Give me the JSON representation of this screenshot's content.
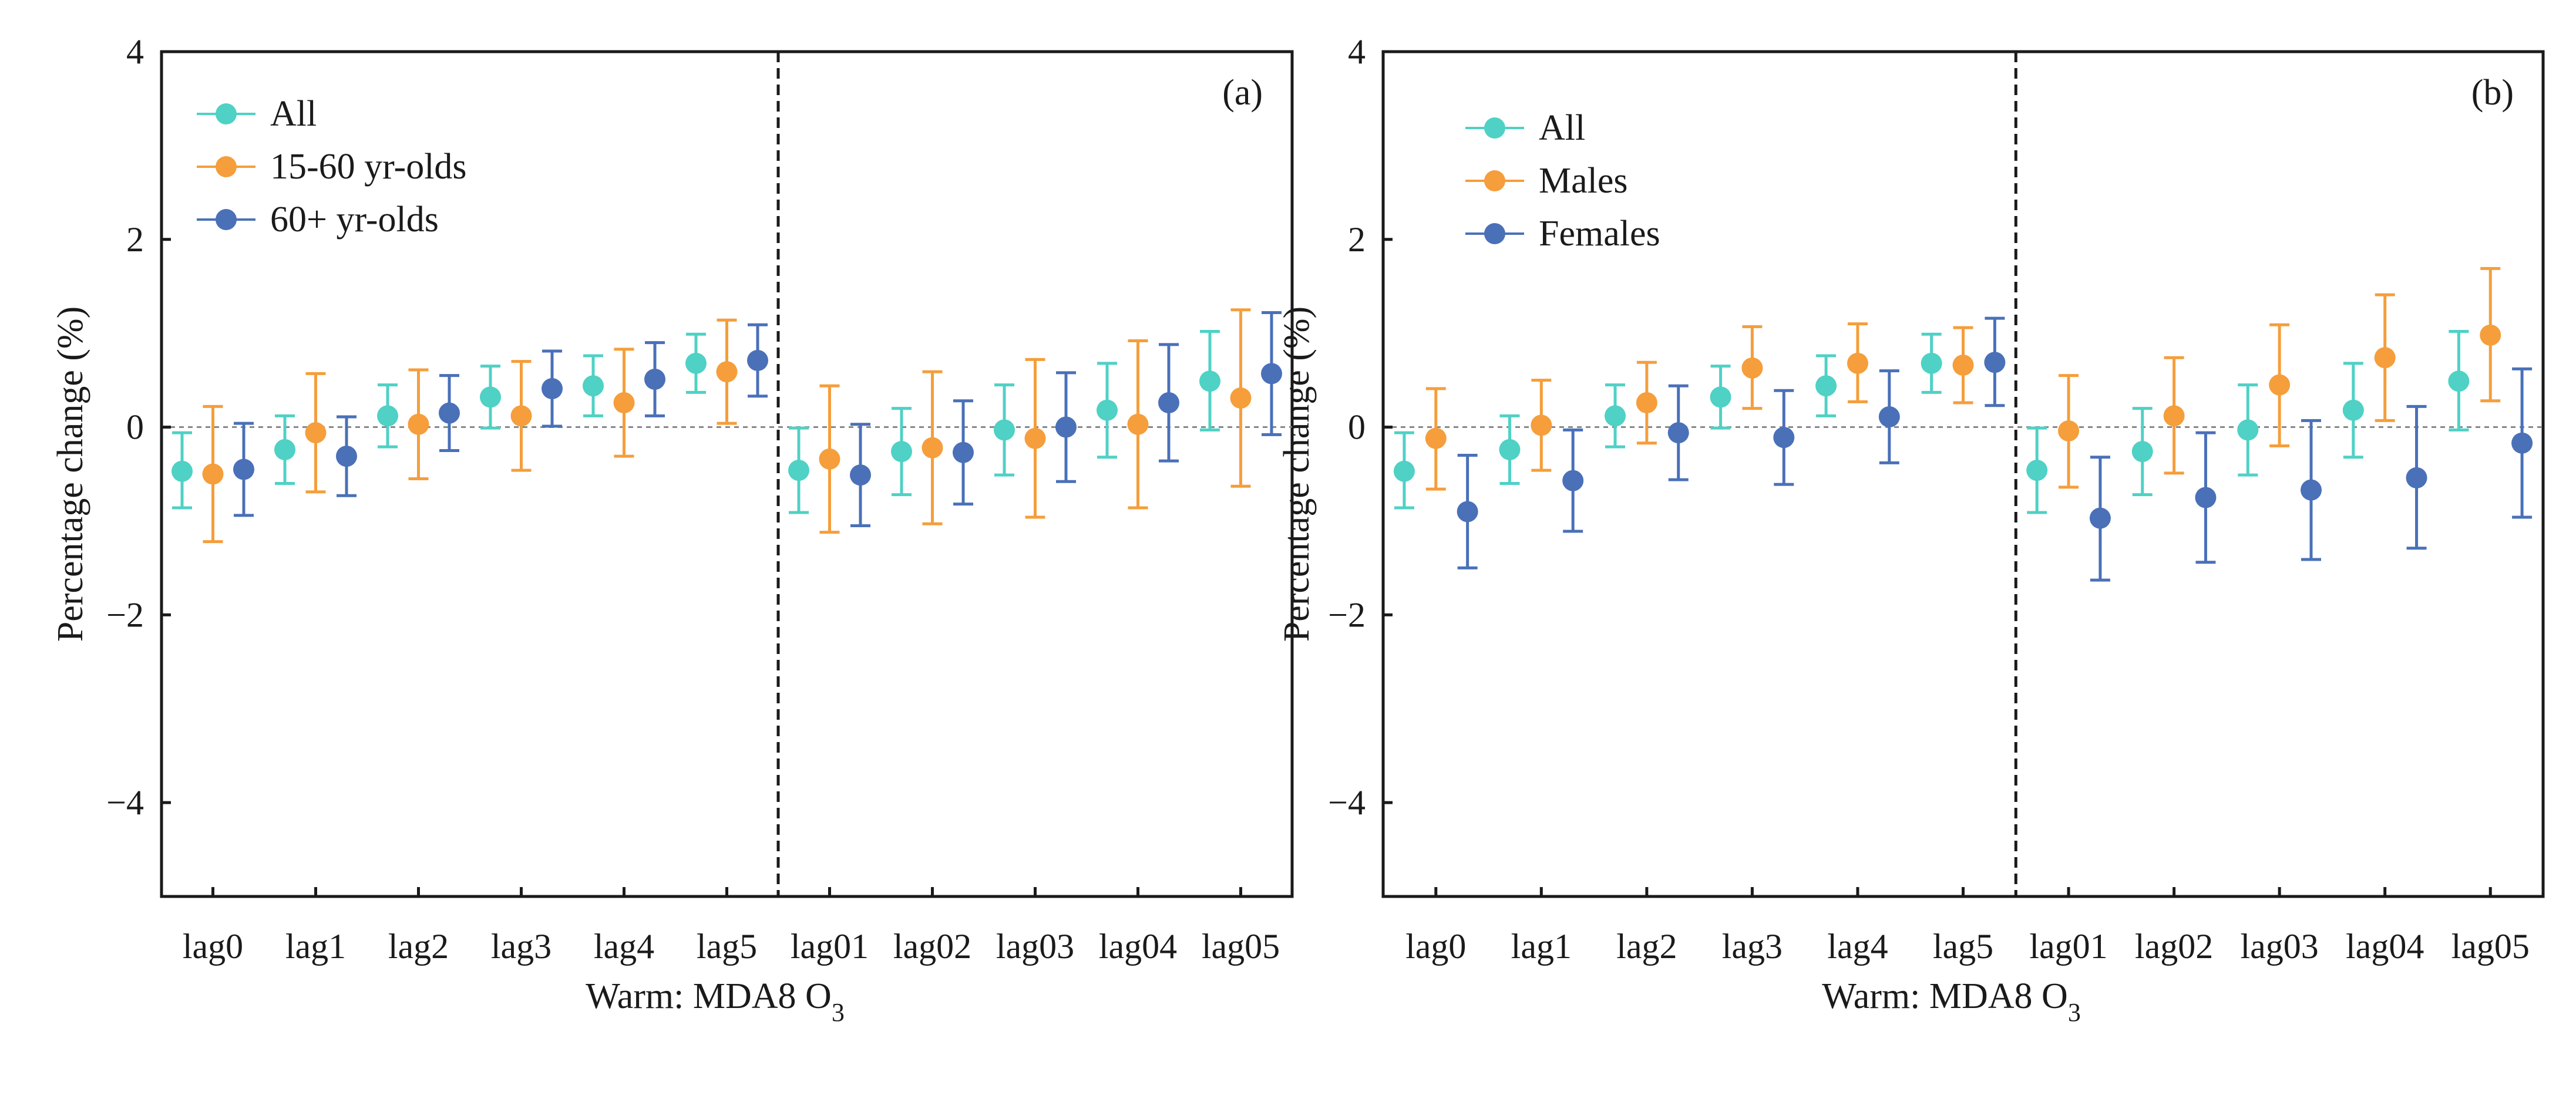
{
  "chart_data": [
    {
      "type": "errorbar",
      "panel_label": "(a)",
      "xlabel": "Warm: MDA8 O",
      "xlabel_subscript": "3",
      "ylabel": "Percentage change (%)",
      "ylim": [
        -5,
        4
      ],
      "yticks": [
        4,
        2,
        0,
        -2,
        -4
      ],
      "ytick_labels": [
        "4",
        "2",
        "0",
        "−2",
        "−4"
      ],
      "categories": [
        "lag0",
        "lag1",
        "lag2",
        "lag3",
        "lag4",
        "lag5",
        "lag01",
        "lag02",
        "lag03",
        "lag04",
        "lag05"
      ],
      "divider_after_index": 5,
      "reference_line": 0,
      "legend_position": "top-left",
      "series": [
        {
          "name": "All",
          "color": "#4fd1c5",
          "values": [
            -0.47,
            -0.24,
            0.12,
            0.32,
            0.44,
            0.68,
            -0.46,
            -0.26,
            -0.03,
            0.18,
            0.49
          ],
          "lower": [
            -0.86,
            -0.6,
            -0.21,
            -0.01,
            0.12,
            0.37,
            -0.91,
            -0.72,
            -0.51,
            -0.32,
            -0.03
          ],
          "upper": [
            -0.06,
            0.12,
            0.45,
            0.65,
            0.76,
            0.99,
            -0.01,
            0.2,
            0.45,
            0.68,
            1.02
          ]
        },
        {
          "name": "15-60 yr-olds",
          "color": "#f59e3b",
          "values": [
            -0.5,
            -0.06,
            0.03,
            0.12,
            0.26,
            0.59,
            -0.34,
            -0.22,
            -0.12,
            0.03,
            0.31
          ],
          "lower": [
            -1.22,
            -0.69,
            -0.55,
            -0.46,
            -0.31,
            0.04,
            -1.12,
            -1.03,
            -0.96,
            -0.86,
            -0.63
          ],
          "upper": [
            0.22,
            0.57,
            0.61,
            0.7,
            0.83,
            1.14,
            0.44,
            0.59,
            0.72,
            0.92,
            1.25
          ]
        },
        {
          "name": "60+ yr-olds",
          "color": "#4a70b8",
          "values": [
            -0.45,
            -0.31,
            0.15,
            0.41,
            0.51,
            0.71,
            -0.51,
            -0.27,
            0.0,
            0.26,
            0.57
          ],
          "lower": [
            -0.94,
            -0.73,
            -0.25,
            0.01,
            0.12,
            0.33,
            -1.05,
            -0.82,
            -0.58,
            -0.36,
            -0.08
          ],
          "upper": [
            0.04,
            0.11,
            0.55,
            0.81,
            0.9,
            1.09,
            0.03,
            0.28,
            0.58,
            0.88,
            1.22
          ]
        }
      ]
    },
    {
      "type": "errorbar",
      "panel_label": "(b)",
      "xlabel": "Warm: MDA8 O",
      "xlabel_subscript": "3",
      "ylabel": "Percentage change (%)",
      "ylim": [
        -5,
        4
      ],
      "yticks": [
        4,
        2,
        0,
        -2,
        -4
      ],
      "ytick_labels": [
        "4",
        "2",
        "0",
        "−2",
        "−4"
      ],
      "categories": [
        "lag0",
        "lag1",
        "lag2",
        "lag3",
        "lag4",
        "lag5",
        "lag01",
        "lag02",
        "lag03",
        "lag04",
        "lag05"
      ],
      "divider_after_index": 5,
      "reference_line": 0,
      "legend_position": "top-left",
      "series": [
        {
          "name": "All",
          "color": "#4fd1c5",
          "values": [
            -0.47,
            -0.24,
            0.12,
            0.32,
            0.44,
            0.68,
            -0.46,
            -0.26,
            -0.03,
            0.18,
            0.49
          ],
          "lower": [
            -0.86,
            -0.6,
            -0.21,
            -0.01,
            0.12,
            0.37,
            -0.91,
            -0.72,
            -0.51,
            -0.32,
            -0.03
          ],
          "upper": [
            -0.06,
            0.12,
            0.45,
            0.65,
            0.76,
            0.99,
            -0.01,
            0.2,
            0.45,
            0.68,
            1.02
          ]
        },
        {
          "name": "Males",
          "color": "#f59e3b",
          "values": [
            -0.12,
            0.02,
            0.26,
            0.63,
            0.68,
            0.66,
            -0.04,
            0.12,
            0.45,
            0.74,
            0.98
          ],
          "lower": [
            -0.66,
            -0.46,
            -0.17,
            0.2,
            0.27,
            0.26,
            -0.64,
            -0.49,
            -0.2,
            0.07,
            0.28
          ],
          "upper": [
            0.41,
            0.5,
            0.69,
            1.07,
            1.1,
            1.06,
            0.55,
            0.74,
            1.09,
            1.41,
            1.69
          ]
        },
        {
          "name": "Females",
          "color": "#4a70b8",
          "values": [
            -0.9,
            -0.57,
            -0.06,
            -0.11,
            0.11,
            0.69,
            -0.97,
            -0.75,
            -0.67,
            -0.54,
            -0.17
          ],
          "lower": [
            -1.5,
            -1.11,
            -0.56,
            -0.61,
            -0.38,
            0.23,
            -1.63,
            -1.44,
            -1.41,
            -1.29,
            -0.96
          ],
          "upper": [
            -0.3,
            -0.03,
            0.44,
            0.39,
            0.6,
            1.16,
            -0.32,
            -0.06,
            0.07,
            0.22,
            0.62
          ]
        }
      ]
    }
  ]
}
